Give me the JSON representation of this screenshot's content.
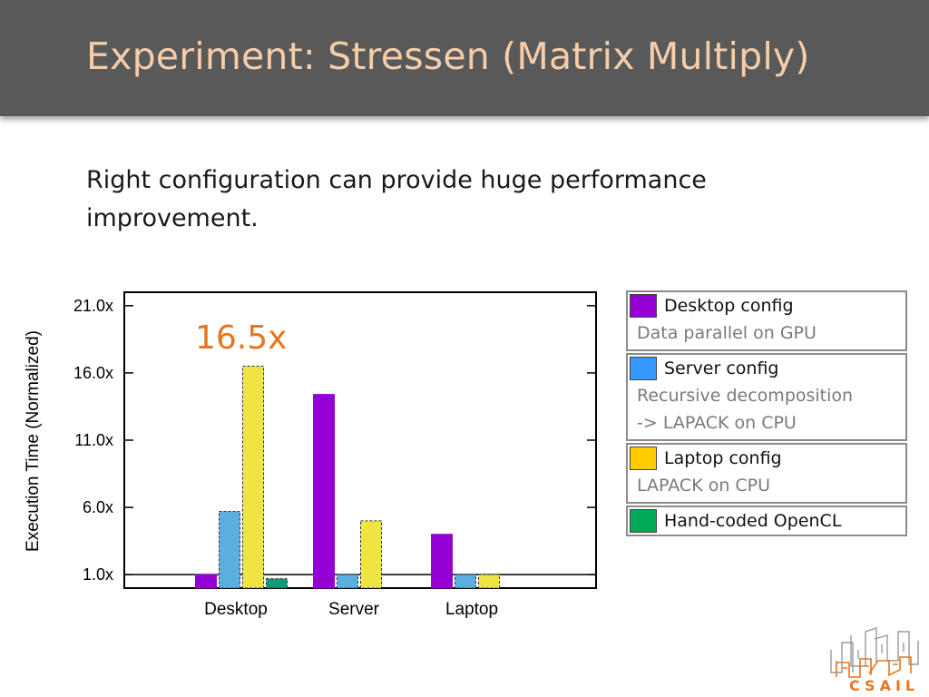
{
  "slide": {
    "title": "Experiment: Stressen (Matrix Multiply)",
    "subtitle": "Right configuration can provide huge performance improvement.",
    "callout": "16.5x",
    "logo_text": "CSAIL"
  },
  "legend": [
    {
      "name": "Desktop config",
      "desc": [
        "Data parallel on GPU"
      ],
      "color": "#9400d3"
    },
    {
      "name": "Server config",
      "desc": [
        "Recursive decomposition",
        "-> LAPACK on CPU"
      ],
      "color": "#3399ff"
    },
    {
      "name": "Laptop config",
      "desc": [
        "LAPACK on CPU"
      ],
      "color": "#ffcc00"
    },
    {
      "name": "Hand-coded OpenCL",
      "desc": [],
      "color": "#00aa55"
    }
  ],
  "chart_data": {
    "type": "bar",
    "ylabel": "Execution Time (Normalized)",
    "categories": [
      "Desktop",
      "Server",
      "Laptop"
    ],
    "ylim": [
      0,
      22
    ],
    "yticks": [
      1,
      6,
      11,
      16,
      21
    ],
    "ytick_labels": [
      "1.0x",
      "6.0x",
      "11.0x",
      "16.0x",
      "21.0x"
    ],
    "baseline": 1,
    "series": [
      {
        "name": "Desktop config",
        "values": [
          1.0,
          14.4,
          4.0
        ],
        "color": "#9400d3",
        "dashed": false
      },
      {
        "name": "Server config",
        "values": [
          5.7,
          1.0,
          1.0
        ],
        "color": "#5aaee0",
        "dashed": true
      },
      {
        "name": "Laptop config",
        "values": [
          16.5,
          5.0,
          1.0
        ],
        "color": "#f0e442",
        "dashed": true
      },
      {
        "name": "Hand-coded OpenCL",
        "values": [
          0.7,
          null,
          null
        ],
        "color": "#129977",
        "dashed": true
      }
    ]
  }
}
